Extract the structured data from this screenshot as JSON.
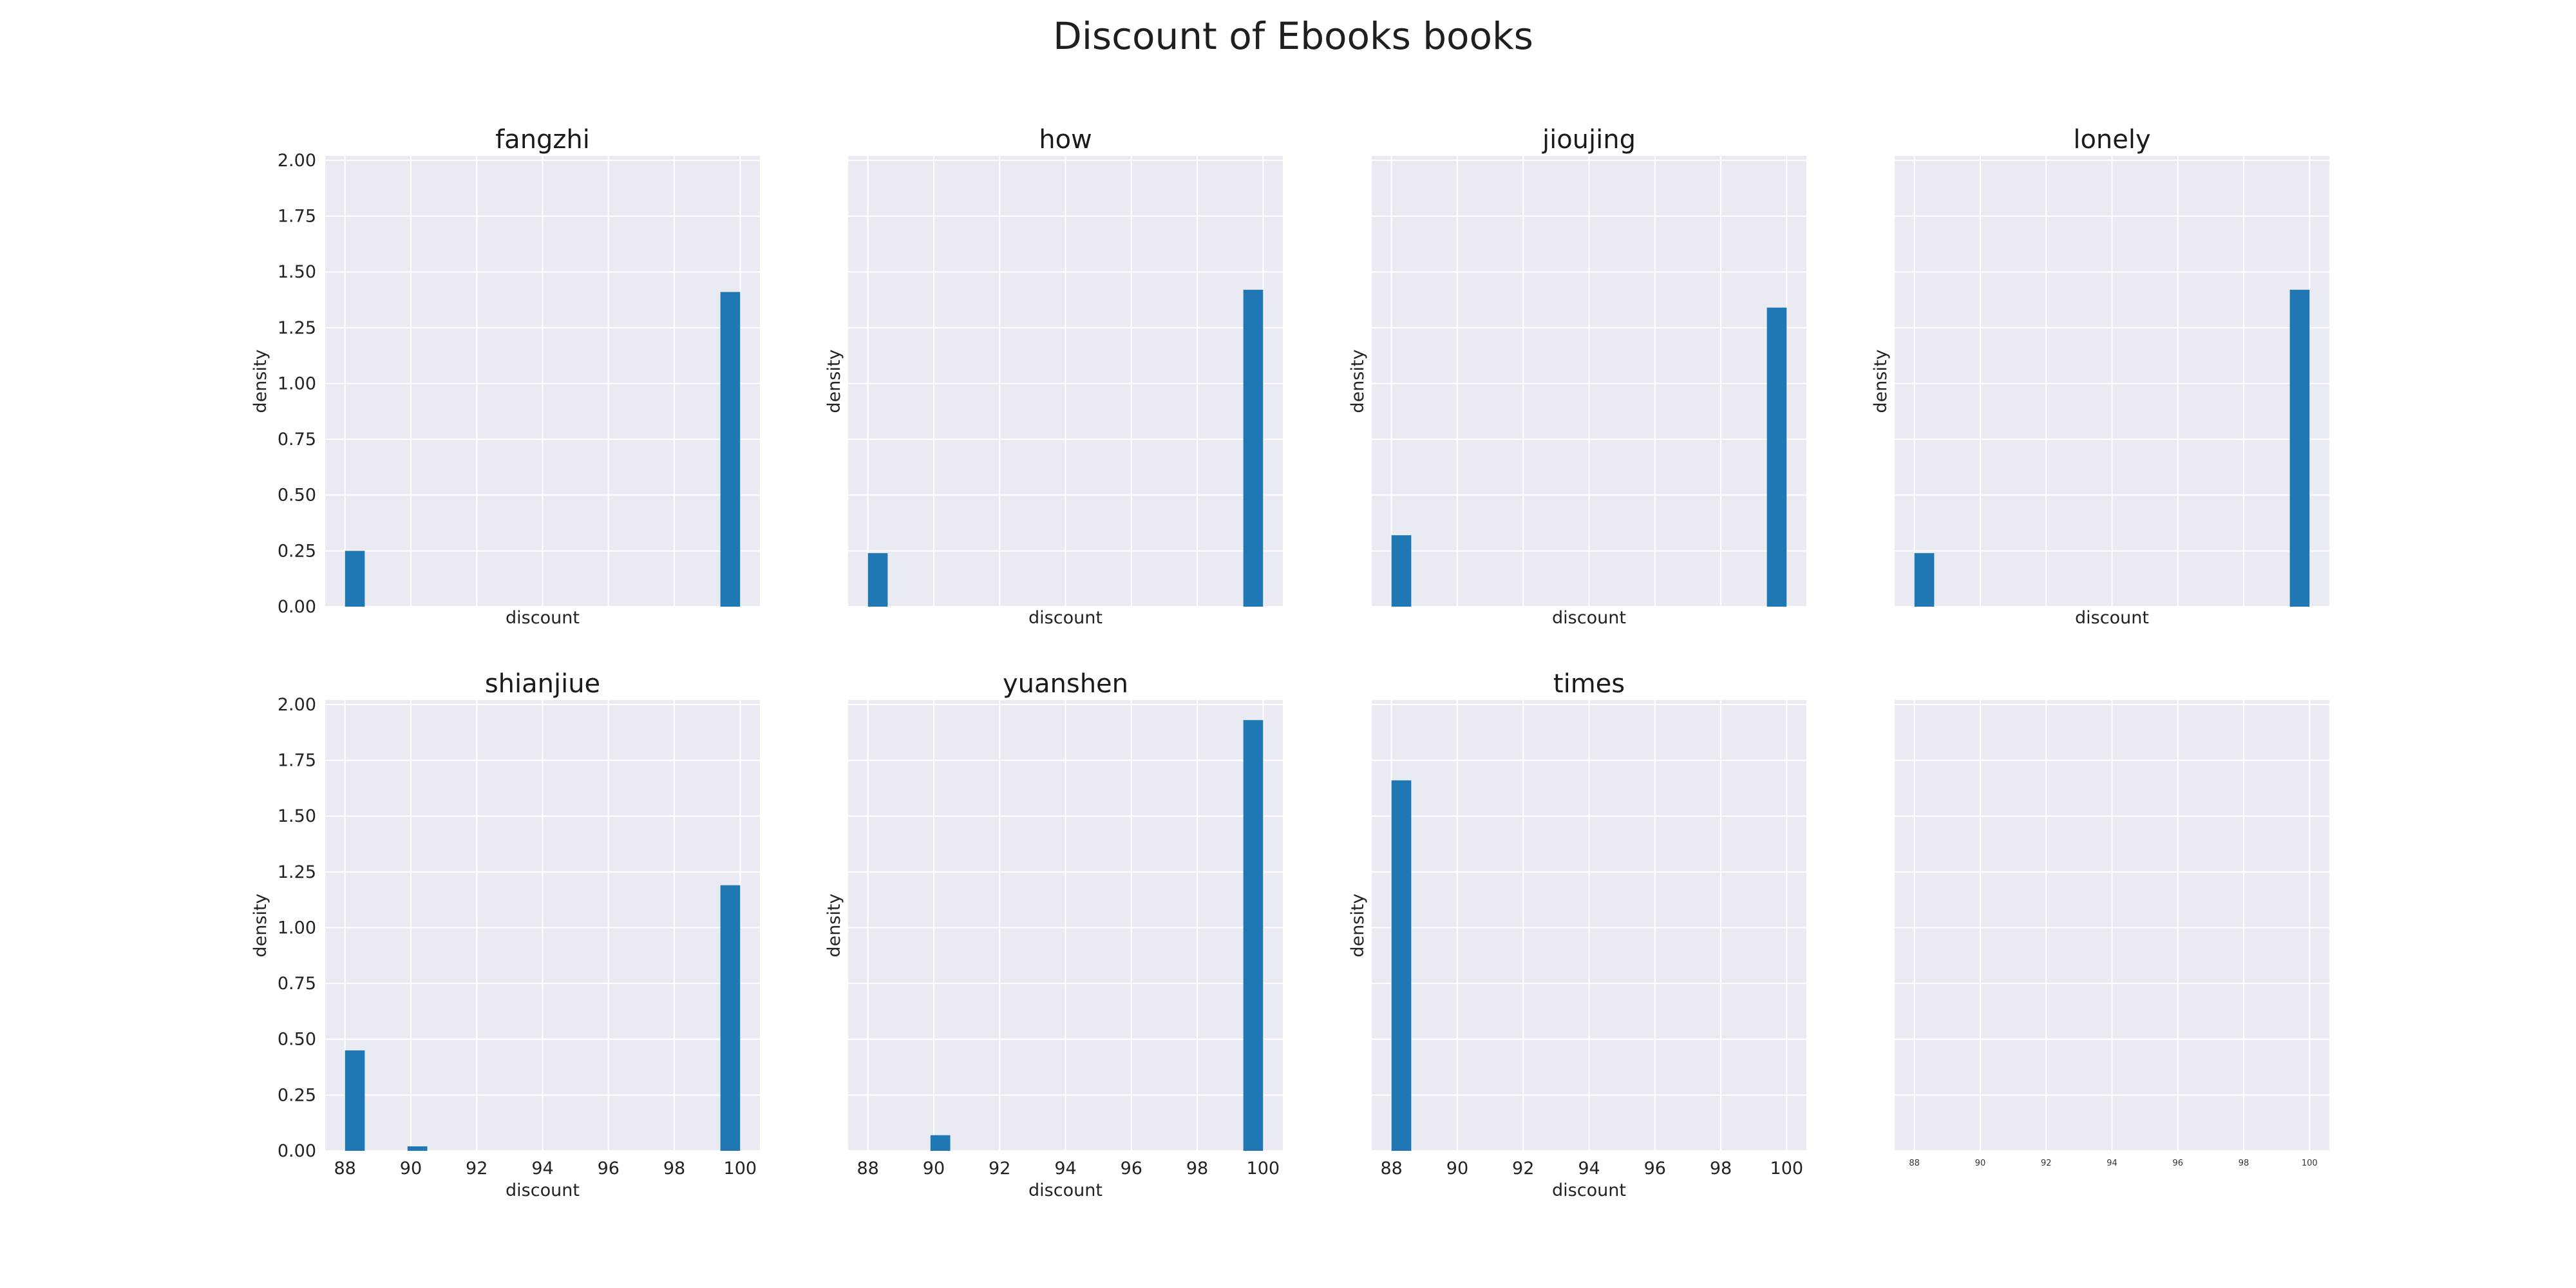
{
  "figure": {
    "title": "Discount of Ebooks books"
  },
  "colors": {
    "bar": "#1f77b4",
    "plot_background": "#eaeaf2",
    "grid": "#ffffff"
  },
  "chart_data": [
    {
      "type": "bar",
      "title": "fangzhi",
      "xlabel": "discount",
      "ylabel": "density",
      "xlim": [
        87.4,
        100.6
      ],
      "ylim": [
        0,
        2.02
      ],
      "xticks": [
        88,
        90,
        92,
        94,
        96,
        98,
        100
      ],
      "xtick_labels_shown": false,
      "yticks": [
        "0.00",
        "0.25",
        "0.50",
        "0.75",
        "1.00",
        "1.25",
        "1.50",
        "1.75",
        "2.00"
      ],
      "ytick_labels_shown": true,
      "grid": true,
      "bins": [
        {
          "x0": 88.0,
          "x1": 88.6,
          "value": 0.25
        },
        {
          "x0": 99.4,
          "x1": 100.0,
          "value": 1.41
        }
      ]
    },
    {
      "type": "bar",
      "title": "how",
      "xlabel": "discount",
      "ylabel": "density",
      "xlim": [
        87.4,
        100.6
      ],
      "ylim": [
        0,
        2.02
      ],
      "xticks": [
        88,
        90,
        92,
        94,
        96,
        98,
        100
      ],
      "xtick_labels_shown": false,
      "yticks": [
        "0.00",
        "0.25",
        "0.50",
        "0.75",
        "1.00",
        "1.25",
        "1.50",
        "1.75",
        "2.00"
      ],
      "ytick_labels_shown": false,
      "grid": true,
      "bins": [
        {
          "x0": 88.0,
          "x1": 88.6,
          "value": 0.24
        },
        {
          "x0": 99.4,
          "x1": 100.0,
          "value": 1.42
        }
      ]
    },
    {
      "type": "bar",
      "title": "jioujing",
      "xlabel": "discount",
      "ylabel": "density",
      "xlim": [
        87.4,
        100.6
      ],
      "ylim": [
        0,
        2.02
      ],
      "xticks": [
        88,
        90,
        92,
        94,
        96,
        98,
        100
      ],
      "xtick_labels_shown": false,
      "yticks": [
        "0.00",
        "0.25",
        "0.50",
        "0.75",
        "1.00",
        "1.25",
        "1.50",
        "1.75",
        "2.00"
      ],
      "ytick_labels_shown": false,
      "grid": true,
      "bins": [
        {
          "x0": 88.0,
          "x1": 88.6,
          "value": 0.32
        },
        {
          "x0": 99.4,
          "x1": 100.0,
          "value": 1.34
        }
      ]
    },
    {
      "type": "bar",
      "title": "lonely",
      "xlabel": "discount",
      "ylabel": "density",
      "xlim": [
        87.4,
        100.6
      ],
      "ylim": [
        0,
        2.02
      ],
      "xticks": [
        88,
        90,
        92,
        94,
        96,
        98,
        100
      ],
      "xtick_labels_shown": false,
      "yticks": [
        "0.00",
        "0.25",
        "0.50",
        "0.75",
        "1.00",
        "1.25",
        "1.50",
        "1.75",
        "2.00"
      ],
      "ytick_labels_shown": false,
      "grid": true,
      "bins": [
        {
          "x0": 88.0,
          "x1": 88.6,
          "value": 0.24
        },
        {
          "x0": 99.4,
          "x1": 100.0,
          "value": 1.42
        }
      ]
    },
    {
      "type": "bar",
      "title": "shianjiue",
      "xlabel": "discount",
      "ylabel": "density",
      "xlim": [
        87.4,
        100.6
      ],
      "ylim": [
        0,
        2.02
      ],
      "xticks": [
        88,
        90,
        92,
        94,
        96,
        98,
        100
      ],
      "xtick_labels_shown": true,
      "yticks": [
        "0.00",
        "0.25",
        "0.50",
        "0.75",
        "1.00",
        "1.25",
        "1.50",
        "1.75",
        "2.00"
      ],
      "ytick_labels_shown": true,
      "grid": true,
      "bins": [
        {
          "x0": 88.0,
          "x1": 88.6,
          "value": 0.45
        },
        {
          "x0": 89.9,
          "x1": 90.5,
          "value": 0.02
        },
        {
          "x0": 99.4,
          "x1": 100.0,
          "value": 1.19
        }
      ]
    },
    {
      "type": "bar",
      "title": "yuanshen",
      "xlabel": "discount",
      "ylabel": "density",
      "xlim": [
        87.4,
        100.6
      ],
      "ylim": [
        0,
        2.02
      ],
      "xticks": [
        88,
        90,
        92,
        94,
        96,
        98,
        100
      ],
      "xtick_labels_shown": true,
      "yticks": [
        "0.00",
        "0.25",
        "0.50",
        "0.75",
        "1.00",
        "1.25",
        "1.50",
        "1.75",
        "2.00"
      ],
      "ytick_labels_shown": false,
      "grid": true,
      "bins": [
        {
          "x0": 89.9,
          "x1": 90.5,
          "value": 0.07
        },
        {
          "x0": 99.4,
          "x1": 100.0,
          "value": 1.93
        }
      ]
    },
    {
      "type": "bar",
      "title": "times",
      "xlabel": "discount",
      "ylabel": "density",
      "xlim": [
        87.4,
        100.6
      ],
      "ylim": [
        0,
        2.02
      ],
      "xticks": [
        88,
        90,
        92,
        94,
        96,
        98,
        100
      ],
      "xtick_labels_shown": true,
      "yticks": [
        "0.00",
        "0.25",
        "0.50",
        "0.75",
        "1.00",
        "1.25",
        "1.50",
        "1.75",
        "2.00"
      ],
      "ytick_labels_shown": false,
      "grid": true,
      "bins": [
        {
          "x0": 88.0,
          "x1": 88.6,
          "value": 1.66
        }
      ]
    },
    {
      "type": "bar",
      "title": "",
      "xlabel": "",
      "ylabel": "",
      "xlim": [
        87.4,
        100.6
      ],
      "ylim": [
        0,
        2.02
      ],
      "xticks": [
        88,
        90,
        92,
        94,
        96,
        98,
        100
      ],
      "xtick_labels_shown": true,
      "xtick_labels_small": true,
      "yticks": [
        "0.00",
        "0.25",
        "0.50",
        "0.75",
        "1.00",
        "1.25",
        "1.50",
        "1.75",
        "2.00"
      ],
      "ytick_labels_shown": false,
      "grid": true,
      "bins": []
    }
  ]
}
